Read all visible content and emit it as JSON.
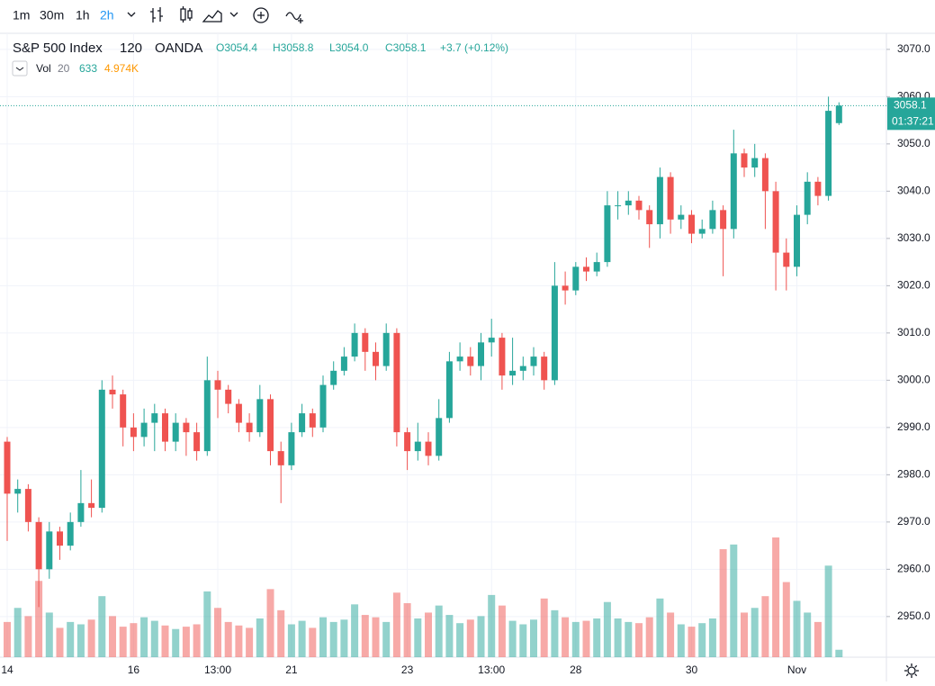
{
  "toolbar": {
    "intervals": [
      "1m",
      "30m",
      "1h",
      "2h"
    ],
    "active": 3
  },
  "legend": {
    "symbol": "S&P 500 Index",
    "interval": "120",
    "source": "OANDA",
    "ohlc_labels": [
      "O3054.4",
      "H3058.8",
      "L3054.0",
      "C3058.1",
      "+3.7 (+0.12%)"
    ],
    "volume": [
      "Vol",
      "20",
      "633",
      "4.974K"
    ]
  },
  "countdown": "01:37:21",
  "chart_data": {
    "type": "candlestick",
    "up_color": "#26a69a",
    "down_color": "#ef5350",
    "categories": [
      "14",
      null,
      null,
      null,
      null,
      null,
      null,
      null,
      null,
      null,
      null,
      null,
      "16",
      null,
      null,
      null,
      null,
      null,
      null,
      null,
      "13:00",
      null,
      null,
      null,
      null,
      null,
      null,
      "21",
      null,
      null,
      null,
      null,
      null,
      null,
      null,
      null,
      null,
      null,
      "23",
      null,
      null,
      null,
      null,
      null,
      null,
      null,
      "13:00",
      null,
      null,
      null,
      null,
      null,
      null,
      null,
      "28",
      null,
      null,
      null,
      null,
      null,
      null,
      null,
      null,
      null,
      null,
      "30",
      null,
      null,
      null,
      null,
      null,
      null,
      null,
      null,
      null,
      "Nov",
      null,
      null,
      null,
      null
    ],
    "open": [
      2987,
      2976,
      2977,
      2970,
      2960,
      2968,
      2965,
      2970,
      2974,
      2973,
      2998,
      2997,
      2990,
      2988,
      2991,
      2993,
      2987,
      2991,
      2989,
      2985,
      3000,
      2998,
      2995,
      2991,
      2989,
      2996,
      2985,
      2982,
      2989,
      2993,
      2990,
      2999,
      3002,
      3005,
      3010,
      3006,
      3003,
      3010,
      2989,
      2985,
      2987,
      2984,
      2992,
      3004,
      3005,
      3003,
      3008,
      3009,
      3001,
      3002,
      3003,
      3005,
      3000,
      3020,
      3019,
      3024,
      3023,
      3025,
      3037,
      3037,
      3038,
      3036,
      3033,
      3043,
      3034,
      3035,
      3031,
      3032,
      3036,
      3032,
      3048,
      3045,
      3047,
      3040,
      3027,
      3024,
      3035,
      3042,
      3039,
      3054.4
    ],
    "high": [
      2988,
      2979,
      2978,
      2971,
      2970,
      2969,
      2972,
      2981,
      2979,
      3000,
      3001,
      2998,
      2993,
      2994,
      2995,
      2994,
      2993,
      2992,
      2991,
      3005,
      3002,
      2999,
      2996,
      2993,
      2999,
      2997,
      2987,
      2991,
      2995,
      2994,
      3001,
      3004,
      3007,
      3012,
      3011,
      3008,
      3012,
      3011,
      2990,
      2991,
      2989,
      2996,
      3006,
      3008,
      3007,
      3010,
      3013,
      3010,
      3009,
      3005,
      3007,
      3006,
      3025,
      3023,
      3025,
      3026,
      3027,
      3040,
      3040,
      3040,
      3039,
      3037,
      3045,
      3044,
      3037,
      3036,
      3034,
      3038,
      3037,
      3053,
      3049,
      3050,
      3048,
      3042,
      3030,
      3037,
      3044,
      3043,
      3060,
      3058.8
    ],
    "low": [
      2966,
      2972,
      2968,
      2952,
      2958,
      2962,
      2964,
      2969,
      2971,
      2972,
      2994,
      2986,
      2985,
      2986,
      2985,
      2985,
      2985,
      2984,
      2983,
      2984,
      2992,
      2993,
      2989,
      2987,
      2988,
      2982,
      2974,
      2981,
      2988,
      2988,
      2989,
      2998,
      3001,
      3004,
      3002,
      3000,
      3002,
      2986,
      2981,
      2983,
      2982,
      2983,
      2991,
      3002,
      3001,
      3000,
      3005,
      2998,
      2999,
      3000,
      3001,
      2998,
      2999,
      3016,
      3018,
      3021,
      3022,
      3024,
      3034,
      3035,
      3034,
      3028,
      3030,
      3031,
      3032,
      3029,
      3030,
      3031,
      3022,
      3030,
      3043,
      3043,
      3032,
      3019,
      3019,
      3022,
      3033,
      3037,
      3038,
      3054.0
    ],
    "close": [
      2976,
      2977,
      2970,
      2960,
      2968,
      2965,
      2970,
      2974,
      2973,
      2998,
      2997,
      2990,
      2988,
      2991,
      2993,
      2987,
      2991,
      2989,
      2985,
      3000,
      2998,
      2995,
      2991,
      2989,
      2996,
      2985,
      2982,
      2989,
      2993,
      2990,
      2999,
      3002,
      3005,
      3010,
      3006,
      3003,
      3010,
      2989,
      2985,
      2987,
      2984,
      2992,
      3004,
      3005,
      3003,
      3008,
      3009,
      3001,
      3002,
      3003,
      3005,
      3000,
      3020,
      3019,
      3024,
      3023,
      3025,
      3037,
      3037,
      3038,
      3036,
      3033,
      3043,
      3034,
      3035,
      3031,
      3032,
      3036,
      3032,
      3048,
      3045,
      3047,
      3040,
      3027,
      3024,
      3035,
      3042,
      3039,
      3057,
      3058.1
    ],
    "volume": [
      3000,
      4200,
      3500,
      6500,
      3800,
      2500,
      3000,
      2800,
      3200,
      5200,
      3500,
      2600,
      2900,
      3400,
      3100,
      2700,
      2400,
      2600,
      2800,
      5600,
      4200,
      3000,
      2700,
      2500,
      3300,
      5800,
      4000,
      2800,
      3100,
      2500,
      3400,
      3000,
      3200,
      4500,
      3600,
      3400,
      3000,
      5500,
      4600,
      3300,
      3800,
      4400,
      3600,
      2900,
      3200,
      3500,
      5300,
      4400,
      3100,
      2800,
      3200,
      5000,
      4000,
      3400,
      3000,
      3100,
      3300,
      4700,
      3300,
      3000,
      2900,
      3400,
      5000,
      3800,
      2800,
      2600,
      2900,
      3300,
      9200,
      9600,
      3800,
      4200,
      5200,
      10200,
      6400,
      4800,
      3800,
      3000,
      7800,
      633
    ],
    "ylim": [
      2941.4,
      3073.4
    ],
    "yticks": [
      {
        "value": 2950,
        "label": "2950.0"
      },
      {
        "value": 2960,
        "label": "2960.0"
      },
      {
        "value": 2970,
        "label": "2970.0"
      },
      {
        "value": 2980,
        "label": "2980.0"
      },
      {
        "value": 2990,
        "label": "2990.0"
      },
      {
        "value": 3000,
        "label": "3000.0"
      },
      {
        "value": 3010,
        "label": "3010.0"
      },
      {
        "value": 3020,
        "label": "3020.0"
      },
      {
        "value": 3030,
        "label": "3030.0"
      },
      {
        "value": 3040,
        "label": "3040.0"
      },
      {
        "value": 3050,
        "label": "3050.0"
      },
      {
        "value": 3060,
        "label": "3060.0"
      },
      {
        "value": 3070,
        "label": "3070.0"
      }
    ],
    "grid": true
  }
}
